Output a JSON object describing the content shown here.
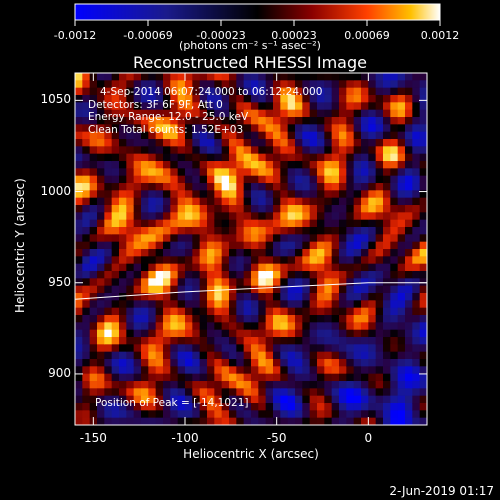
{
  "colorbar": {
    "ticks": [
      "-0.0012",
      "-0.00069",
      "-0.00023",
      "0.00023",
      "0.00069",
      "0.0012"
    ],
    "unit_label": "(photons cm⁻² s⁻¹ asec⁻²)"
  },
  "chart_data": {
    "type": "heatmap",
    "title": "Reconstructed RHESSI Image",
    "xlabel": "Heliocentric X (arcsec)",
    "ylabel": "Heliocentric Y (arcsec)",
    "xlim": [
      -160,
      32
    ],
    "ylim": [
      872,
      1065
    ],
    "xticks": [
      -150,
      -100,
      -50,
      0
    ],
    "yticks": [
      900,
      950,
      1000,
      1050
    ],
    "colorbar_range": [
      -0.0012,
      0.0012
    ],
    "colormap": "blue-black-red-yellow-white",
    "limb_line": [
      [
        -160,
        941
      ],
      [
        -100,
        945
      ],
      [
        -40,
        948
      ],
      [
        0,
        950
      ],
      [
        32,
        950
      ]
    ],
    "annotations": {
      "time": "4-Sep-2014 06:07:24.000 to 06:12:24.000",
      "detectors": "Detectors: 3F 6F 9F, Att 0",
      "energy": "Energy Range: 12.0 - 25.0 keV",
      "clean": "Clean    Total counts: 1.52E+03",
      "peak": "Position of Peak = [-14,1021]"
    }
  },
  "footer": {
    "date": "2-Jun-2019 01:17"
  }
}
